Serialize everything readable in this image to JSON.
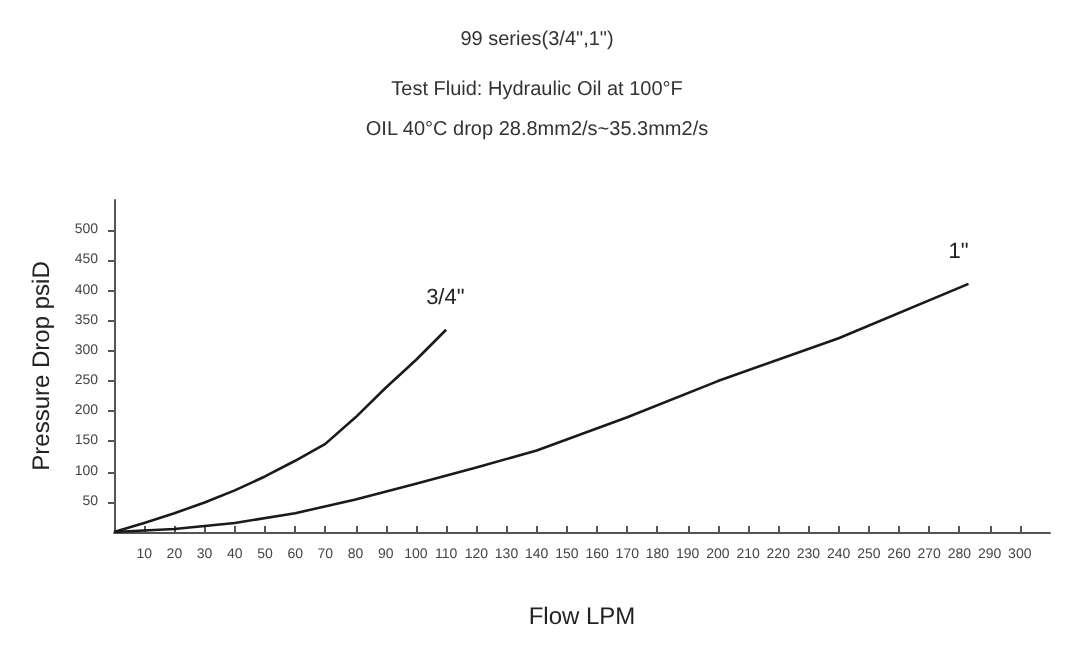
{
  "chart_data": {
    "type": "line",
    "title": "99 series(3/4\",1\")",
    "subtitle": "Test Fluid: Hydraulic Oil at 100°F\nOIL 40°C drop 28.8mm2/s~35.3mm2/s",
    "xlabel": "Flow LPM",
    "ylabel": "Pressure Drop psiD",
    "series": [
      {
        "name": "3/4\"",
        "color": "#1a1a1a",
        "x": [
          0,
          10,
          20,
          30,
          40,
          50,
          60,
          70,
          80,
          90,
          100,
          110
        ],
        "values": [
          0,
          15,
          31,
          49,
          69,
          92,
          118,
          146,
          190,
          239,
          285,
          335
        ]
      },
      {
        "name": "1\"",
        "color": "#1a1a1a",
        "x": [
          0,
          20,
          40,
          60,
          80,
          100,
          120,
          140,
          170,
          200,
          240,
          283
        ],
        "values": [
          0,
          5,
          15,
          31,
          54,
          80,
          107,
          135,
          190,
          250,
          321,
          411
        ]
      }
    ],
    "xlim": [
      0,
      310
    ],
    "xticks": [
      10,
      20,
      30,
      40,
      50,
      60,
      70,
      80,
      90,
      100,
      110,
      120,
      130,
      140,
      150,
      160,
      170,
      180,
      190,
      200,
      210,
      220,
      230,
      240,
      250,
      260,
      270,
      280,
      290,
      300
    ],
    "ylim": [
      0,
      550
    ],
    "yticks": [
      50,
      100,
      150,
      200,
      250,
      300,
      350,
      400,
      450,
      500
    ],
    "grid": false,
    "marker": "none",
    "line_style": "solid",
    "legend": false
  }
}
